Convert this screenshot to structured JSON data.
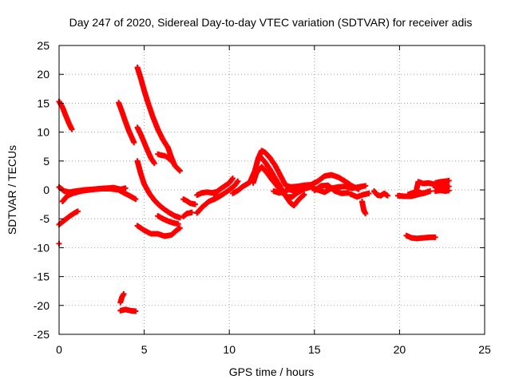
{
  "chart_data": {
    "type": "scatter",
    "title": "Day 247 of 2020, Sidereal Day-to-day VTEC variation (SDTVAR) for receiver adis",
    "xlabel": "GPS time / hours",
    "ylabel": "SDTVAR / TECUs",
    "xlim": [
      0,
      25
    ],
    "ylim": [
      -25,
      25
    ],
    "xticks": [
      0,
      5,
      10,
      15,
      20,
      25
    ],
    "yticks": [
      -25,
      -20,
      -15,
      -10,
      -5,
      0,
      5,
      10,
      15,
      20,
      25
    ],
    "grid": true,
    "marker": "+",
    "color": "#ff0000",
    "series": [
      {
        "name": "seg-a",
        "points": [
          [
            0.0,
            15.3
          ],
          [
            0.2,
            14.3
          ],
          [
            0.4,
            12.8
          ],
          [
            0.6,
            11.4
          ],
          [
            0.75,
            10.5
          ]
        ]
      },
      {
        "name": "seg-b",
        "points": [
          [
            0.0,
            -6.0
          ],
          [
            0.3,
            -5.3
          ],
          [
            0.6,
            -4.6
          ],
          [
            0.9,
            -4.0
          ],
          [
            1.1,
            -3.7
          ]
        ]
      },
      {
        "name": "seg-c",
        "points": [
          [
            0.0,
            -9.3
          ]
        ]
      },
      {
        "name": "seg-d",
        "points": [
          [
            0.0,
            0.5
          ],
          [
            0.3,
            -0.2
          ],
          [
            0.6,
            -0.4
          ],
          [
            1.0,
            -0.2
          ],
          [
            1.5,
            0.0
          ],
          [
            2.0,
            0.1
          ],
          [
            2.5,
            0.2
          ],
          [
            3.0,
            0.2
          ],
          [
            3.5,
            0.0
          ],
          [
            3.8,
            -0.5
          ],
          [
            4.2,
            -1.1
          ],
          [
            4.5,
            -1.6
          ]
        ]
      },
      {
        "name": "seg-e",
        "points": [
          [
            0.2,
            -2.0
          ],
          [
            0.5,
            -1.0
          ],
          [
            0.8,
            -0.6
          ],
          [
            1.3,
            -0.2
          ],
          [
            1.8,
            0.0
          ],
          [
            2.3,
            0.2
          ],
          [
            2.8,
            0.3
          ],
          [
            3.2,
            0.4
          ],
          [
            3.6,
            0.1
          ],
          [
            3.9,
            0.3
          ]
        ]
      },
      {
        "name": "seg-f",
        "points": [
          [
            3.5,
            15.1
          ],
          [
            3.7,
            13.5
          ],
          [
            3.9,
            11.8
          ],
          [
            4.1,
            10.2
          ],
          [
            4.3,
            8.9
          ],
          [
            4.4,
            8.2
          ]
        ]
      },
      {
        "name": "seg-g",
        "points": [
          [
            4.6,
            21.2
          ],
          [
            4.8,
            19.3
          ],
          [
            5.0,
            17.2
          ],
          [
            5.2,
            15.3
          ],
          [
            5.5,
            12.7
          ],
          [
            5.8,
            10.5
          ],
          [
            6.1,
            8.7
          ],
          [
            6.4,
            7.3
          ],
          [
            6.6,
            5.6
          ],
          [
            6.8,
            4.2
          ],
          [
            7.1,
            3.3
          ]
        ]
      },
      {
        "name": "seg-h",
        "points": [
          [
            4.6,
            10.8
          ],
          [
            4.8,
            9.6
          ],
          [
            5.0,
            8.2
          ],
          [
            5.2,
            6.8
          ],
          [
            5.4,
            5.5
          ],
          [
            5.6,
            4.6
          ]
        ]
      },
      {
        "name": "seg-i",
        "points": [
          [
            4.6,
            5.0
          ],
          [
            4.8,
            2.8
          ],
          [
            5.0,
            1.0
          ],
          [
            5.3,
            -0.6
          ],
          [
            5.6,
            -1.8
          ],
          [
            5.9,
            -2.7
          ],
          [
            6.2,
            -3.4
          ],
          [
            6.5,
            -4.0
          ],
          [
            6.8,
            -4.5
          ],
          [
            7.1,
            -4.8
          ]
        ]
      },
      {
        "name": "seg-j",
        "points": [
          [
            5.8,
            6.2
          ],
          [
            6.0,
            6.0
          ],
          [
            6.2,
            5.9
          ],
          [
            6.4,
            5.6
          ],
          [
            6.6,
            5.0
          ]
        ]
      },
      {
        "name": "seg-k",
        "points": [
          [
            4.6,
            -6.2
          ],
          [
            5.0,
            -7.0
          ],
          [
            5.4,
            -7.6
          ],
          [
            5.8,
            -7.6
          ],
          [
            6.2,
            -8.0
          ],
          [
            6.6,
            -7.8
          ],
          [
            6.9,
            -7.0
          ],
          [
            7.1,
            -6.6
          ]
        ]
      },
      {
        "name": "seg-l",
        "points": [
          [
            5.8,
            -4.5
          ],
          [
            6.1,
            -5.0
          ],
          [
            6.4,
            -5.4
          ],
          [
            6.7,
            -5.7
          ],
          [
            7.0,
            -5.9
          ]
        ]
      },
      {
        "name": "seg-m",
        "points": [
          [
            3.6,
            -19.5
          ],
          [
            3.7,
            -18.5
          ],
          [
            3.8,
            -18.0
          ]
        ]
      },
      {
        "name": "seg-n",
        "points": [
          [
            3.6,
            -20.9
          ],
          [
            3.9,
            -20.7
          ],
          [
            4.2,
            -20.9
          ],
          [
            4.5,
            -21.0
          ]
        ]
      },
      {
        "name": "seg-o",
        "points": [
          [
            7.3,
            -4.6
          ],
          [
            7.5,
            -4.1
          ],
          [
            7.8,
            -3.9
          ]
        ]
      },
      {
        "name": "seg-p",
        "points": [
          [
            7.3,
            -1.6
          ],
          [
            7.5,
            -1.9
          ],
          [
            7.7,
            -2.3
          ],
          [
            8.0,
            -2.5
          ]
        ]
      },
      {
        "name": "seg-q",
        "points": [
          [
            8.1,
            -4.0
          ],
          [
            8.4,
            -3.0
          ],
          [
            8.8,
            -2.0
          ],
          [
            9.2,
            -1.5
          ],
          [
            9.6,
            -0.8
          ],
          [
            10.0,
            0.0
          ],
          [
            10.3,
            0.7
          ],
          [
            10.5,
            1.5
          ]
        ]
      },
      {
        "name": "seg-r",
        "points": [
          [
            8.1,
            -0.9
          ],
          [
            8.4,
            -0.5
          ],
          [
            8.7,
            -0.4
          ],
          [
            9.0,
            -0.5
          ],
          [
            9.3,
            -0.3
          ]
        ]
      },
      {
        "name": "seg-s",
        "points": [
          [
            9.1,
            -0.8
          ],
          [
            9.4,
            0.0
          ],
          [
            9.7,
            0.6
          ],
          [
            10.0,
            1.2
          ],
          [
            10.2,
            2.0
          ]
        ]
      },
      {
        "name": "seg-t",
        "points": [
          [
            10.2,
            -0.6
          ],
          [
            10.5,
            -0.1
          ],
          [
            10.8,
            0.6
          ],
          [
            11.2,
            1.3
          ],
          [
            11.5,
            3.3
          ],
          [
            11.7,
            5.5
          ],
          [
            11.9,
            6.8
          ],
          [
            12.1,
            6.5
          ],
          [
            12.4,
            5.5
          ],
          [
            12.7,
            4.2
          ],
          [
            13.0,
            2.5
          ],
          [
            13.3,
            0.8
          ],
          [
            13.6,
            0.5
          ],
          [
            14.0,
            0.6
          ],
          [
            14.4,
            0.8
          ],
          [
            14.8,
            0.9
          ],
          [
            15.2,
            1.5
          ],
          [
            15.6,
            2.4
          ],
          [
            16.0,
            2.6
          ],
          [
            16.4,
            2.2
          ],
          [
            16.8,
            1.5
          ],
          [
            17.2,
            0.7
          ],
          [
            17.6,
            0.1
          ]
        ]
      },
      {
        "name": "seg-u",
        "points": [
          [
            11.4,
            1.2
          ],
          [
            11.6,
            3.0
          ],
          [
            11.9,
            4.0
          ],
          [
            12.2,
            3.0
          ],
          [
            12.5,
            1.8
          ],
          [
            12.8,
            0.7
          ],
          [
            13.1,
            -0.4
          ],
          [
            13.4,
            -1.2
          ],
          [
            13.7,
            -1.2
          ],
          [
            14.0,
            -0.5
          ],
          [
            14.4,
            0.2
          ],
          [
            14.8,
            0.5
          ],
          [
            15.2,
            0.0
          ],
          [
            15.6,
            -0.4
          ],
          [
            16.0,
            0.3
          ],
          [
            16.4,
            0.5
          ],
          [
            16.8,
            0.6
          ],
          [
            17.2,
            0.3
          ],
          [
            17.6,
            0.5
          ],
          [
            18.0,
            0.7
          ]
        ]
      },
      {
        "name": "seg-v",
        "points": [
          [
            11.8,
            5.8
          ],
          [
            12.1,
            4.8
          ],
          [
            12.4,
            3.5
          ],
          [
            12.7,
            2.0
          ],
          [
            13.0,
            0.5
          ],
          [
            13.3,
            -1.0
          ],
          [
            13.6,
            -2.3
          ],
          [
            13.8,
            -2.7
          ],
          [
            14.1,
            -1.6
          ],
          [
            14.4,
            -0.8
          ]
        ]
      },
      {
        "name": "seg-w",
        "points": [
          [
            12.6,
            -0.2
          ],
          [
            12.9,
            -0.5
          ],
          [
            13.2,
            -0.4
          ],
          [
            13.5,
            0.1
          ],
          [
            13.8,
            -0.2
          ],
          [
            14.1,
            0.0
          ]
        ]
      },
      {
        "name": "seg-x",
        "points": [
          [
            15.0,
            -0.1
          ],
          [
            15.4,
            0.7
          ],
          [
            15.8,
            0.8
          ],
          [
            16.2,
            -0.2
          ],
          [
            16.6,
            -0.6
          ],
          [
            17.0,
            -0.5
          ]
        ]
      },
      {
        "name": "seg-y",
        "points": [
          [
            17.1,
            -0.7
          ],
          [
            17.5,
            -1.2
          ],
          [
            17.9,
            -0.8
          ],
          [
            18.2,
            -0.6
          ]
        ]
      },
      {
        "name": "seg-z",
        "points": [
          [
            17.8,
            -2.0
          ],
          [
            17.9,
            -3.5
          ],
          [
            18.0,
            -4.1
          ]
        ]
      },
      {
        "name": "seg-aa",
        "points": [
          [
            18.5,
            -0.2
          ],
          [
            18.7,
            -0.9
          ],
          [
            18.9,
            -1.0
          ],
          [
            19.1,
            -0.6
          ],
          [
            19.3,
            -1.0
          ]
        ]
      },
      {
        "name": "seg-ab",
        "points": [
          [
            19.9,
            -1.0
          ],
          [
            20.3,
            -1.1
          ],
          [
            20.7,
            -1.1
          ],
          [
            21.1,
            -0.8
          ],
          [
            21.5,
            -0.5
          ],
          [
            21.8,
            -0.2
          ]
        ]
      },
      {
        "name": "seg-ac",
        "points": [
          [
            20.5,
            -0.8
          ],
          [
            20.8,
            -0.5
          ],
          [
            21.1,
            -0.4
          ],
          [
            21.4,
            -0.6
          ],
          [
            21.7,
            -0.3
          ]
        ]
      },
      {
        "name": "seg-ad",
        "points": [
          [
            21.0,
            0.1
          ],
          [
            21.1,
            1.4
          ],
          [
            21.4,
            1.1
          ],
          [
            21.7,
            1.2
          ],
          [
            22.0,
            1.0
          ]
        ]
      },
      {
        "name": "seg-ae",
        "points": [
          [
            20.4,
            -7.9
          ],
          [
            20.7,
            -8.3
          ],
          [
            21.0,
            -8.4
          ],
          [
            21.4,
            -8.3
          ],
          [
            21.8,
            -8.2
          ],
          [
            22.1,
            -8.2
          ]
        ]
      },
      {
        "name": "seg-af",
        "points": [
          [
            22.1,
            -0.2
          ],
          [
            22.4,
            -0.1
          ],
          [
            22.7,
            -0.2
          ],
          [
            22.9,
            -0.1
          ]
        ]
      },
      {
        "name": "seg-ag",
        "points": [
          [
            22.1,
            1.2
          ],
          [
            22.4,
            1.4
          ],
          [
            22.7,
            1.5
          ],
          [
            22.9,
            1.6
          ]
        ]
      },
      {
        "name": "seg-ah",
        "points": [
          [
            22.1,
            0.4
          ],
          [
            22.4,
            0.5
          ],
          [
            22.7,
            0.6
          ],
          [
            22.9,
            0.6
          ]
        ]
      }
    ]
  }
}
